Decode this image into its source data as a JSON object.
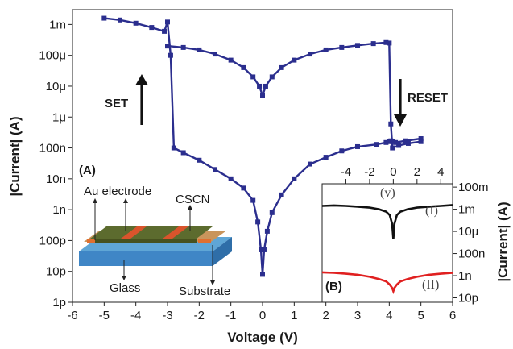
{
  "chart_data": [
    {
      "type": "line",
      "xlabel": "Voltage (V)",
      "ylabel": "|Current| (A)",
      "xlim": [
        -6,
        6
      ],
      "ylim": [
        1e-12,
        0.003
      ],
      "yscale": "log",
      "x_ticks": [
        "-6",
        "-5",
        "-4",
        "-3",
        "-2",
        "-1",
        "0",
        "1",
        "2",
        "3",
        "4",
        "5",
        "6"
      ],
      "y_ticks": [
        "1p",
        "10p",
        "100p",
        "1n",
        "10n",
        "100n",
        "1μ",
        "10μ",
        "100μ",
        "1m"
      ],
      "series": [
        {
          "color": "#2b2e8e",
          "x": [
            -5.0,
            -4.5,
            -4.0,
            -3.5,
            -3.1,
            -3.0,
            -2.9,
            -2.8,
            -2.5,
            -2.0,
            -1.5,
            -1.0,
            -0.6,
            -0.3,
            -0.15,
            -0.05,
            0.0,
            0.05,
            0.15,
            0.3,
            0.6,
            1.0,
            1.5,
            2.0,
            2.5,
            3.0,
            3.6,
            3.9,
            4.0,
            4.05,
            4.1,
            4.2,
            4.5,
            5.0
          ],
          "y": [
            0.0016,
            0.0014,
            0.0011,
            0.0008,
            0.0006,
            0.0012,
            0.0001,
            1e-07,
            7e-08,
            4e-08,
            2e-08,
            1e-08,
            5e-09,
            2e-09,
            4e-10,
            5e-11,
            8e-12,
            5e-11,
            2e-10,
            8e-10,
            3e-09,
            1e-08,
            3e-08,
            5e-08,
            8e-08,
            1.1e-07,
            1.3e-07,
            1.5e-07,
            1.6e-07,
            1.7e-07,
            1.6e-07,
            1.5e-07,
            1.7e-07,
            2e-07
          ]
        },
        {
          "color": "#2b2e8e",
          "x": [
            -3.0,
            -2.5,
            -2.0,
            -1.5,
            -1.0,
            -0.6,
            -0.3,
            -0.1,
            0.0,
            0.1,
            0.3,
            0.6,
            1.0,
            1.5,
            2.0,
            2.5,
            3.0,
            3.5,
            3.9,
            4.0,
            4.05,
            4.1,
            4.3,
            4.6,
            5.0
          ],
          "y": [
            0.0002,
            0.00018,
            0.00015,
            0.00011,
            7e-05,
            4e-05,
            2e-05,
            1e-05,
            5e-06,
            1e-05,
            2e-05,
            4e-05,
            7e-05,
            0.00011,
            0.00015,
            0.00018,
            0.00021,
            0.00024,
            0.00026,
            0.00025,
            6e-07,
            1e-07,
            1.2e-07,
            1.4e-07,
            1.6e-07
          ]
        }
      ],
      "annotations": {
        "set": "SET",
        "reset": "RESET",
        "panel_a": "(A)",
        "au_electrode": "Au electrode",
        "cscn": "CSCN",
        "glass": "Glass",
        "substrate": "Substrate"
      }
    },
    {
      "type": "line",
      "ylabel": "|Current| (A)",
      "xlim": [
        -6,
        5
      ],
      "yscale": "log",
      "x_ticks": [
        "-4",
        "-2",
        "0",
        "2",
        "4"
      ],
      "y_ticks": [
        "100m",
        "1m",
        "10μ",
        "100n",
        "1n",
        "10p"
      ],
      "annotations": {
        "panel_b": "(B)",
        "v": "(v)",
        "i": "(I)",
        "ii": "(II)"
      },
      "series": [
        {
          "name": "(I)",
          "color": "#111111",
          "x": [
            -6,
            -5,
            -4,
            -3,
            -2,
            -1.2,
            -0.6,
            -0.3,
            -0.1,
            0,
            0.1,
            0.3,
            0.6,
            1.2,
            2,
            3,
            4,
            5
          ],
          "y": [
            0.002,
            0.0022,
            0.002,
            0.0017,
            0.0014,
            0.001,
            0.0006,
            0.0003,
            5e-05,
            2e-06,
            5e-05,
            0.0003,
            0.0006,
            0.001,
            0.0014,
            0.0017,
            0.002,
            0.0024
          ]
        },
        {
          "name": "(II)",
          "color": "#e02020",
          "x": [
            -6,
            -5,
            -4,
            -3,
            -2,
            -1.2,
            -0.6,
            -0.3,
            -0.1,
            0,
            0.1,
            0.3,
            0.6,
            1.2,
            2,
            3,
            4,
            5
          ],
          "y": [
            2e-09,
            1.8e-09,
            1.5e-09,
            1.2e-09,
            8e-10,
            5e-10,
            3e-10,
            1.6e-10,
            8e-11,
            4e-11,
            8e-11,
            1.6e-10,
            3e-10,
            5e-10,
            8e-10,
            1.2e-09,
            1.5e-09,
            1.8e-09
          ]
        }
      ]
    }
  ]
}
